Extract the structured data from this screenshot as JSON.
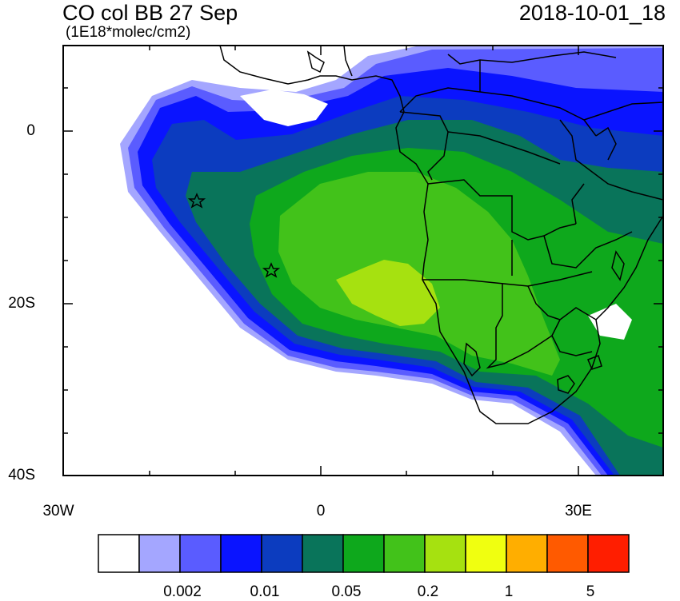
{
  "header": {
    "title": "CO col BB 27 Sep",
    "units": "(1E18*molec/cm2)",
    "timestamp": "2018-10-01_18"
  },
  "axes": {
    "y_labels": [
      "0",
      "20S",
      "40S"
    ],
    "x_labels": [
      "30W",
      "0",
      "30E"
    ]
  },
  "colorbar": {
    "colors": [
      "#ffffff",
      "#a4a6ff",
      "#5a5cff",
      "#0a14ff",
      "#0c3cbf",
      "#09745a",
      "#0ea81c",
      "#42c21a",
      "#a6e110",
      "#f0ff10",
      "#ffae00",
      "#ff5a00",
      "#ff1e00"
    ],
    "labels": [
      "0.002",
      "0.01",
      "0.05",
      "0.2",
      "1",
      "5"
    ]
  },
  "markers": [
    "star",
    "star"
  ]
}
